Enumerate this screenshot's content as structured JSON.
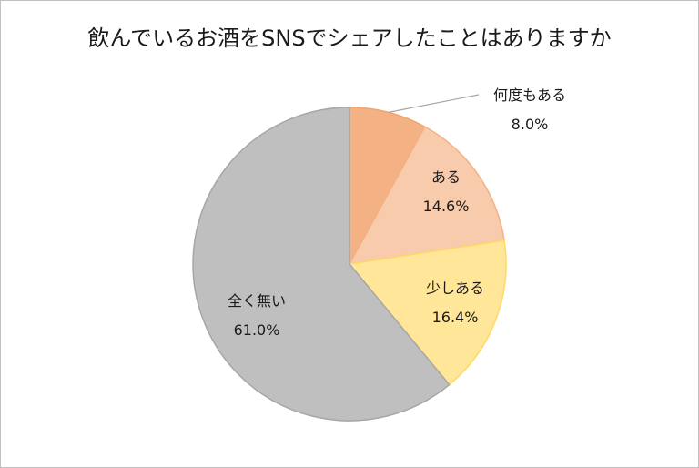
{
  "chart_data": {
    "type": "pie",
    "title": "飲んでいるお酒をSNSでシェアしたことはありますか",
    "slices": [
      {
        "label": "何度もある",
        "value": 8.0,
        "display": "8.0%",
        "color": "#f4b183",
        "stroke": "#f0a56f"
      },
      {
        "label": "ある",
        "value": 14.6,
        "display": "14.6%",
        "color": "#f8cbad",
        "stroke": "#f4b183"
      },
      {
        "label": "少しある",
        "value": 16.4,
        "display": "16.4%",
        "color": "#ffe699",
        "stroke": "#ffd966"
      },
      {
        "label": "全く無い",
        "value": 61.0,
        "display": "61.0%",
        "color": "#bfbfbf",
        "stroke": "#a6a6a6"
      }
    ],
    "start_angle": "12 o'clock",
    "direction": "clockwise",
    "legend": "none",
    "data_labels": "category name and percentage"
  }
}
